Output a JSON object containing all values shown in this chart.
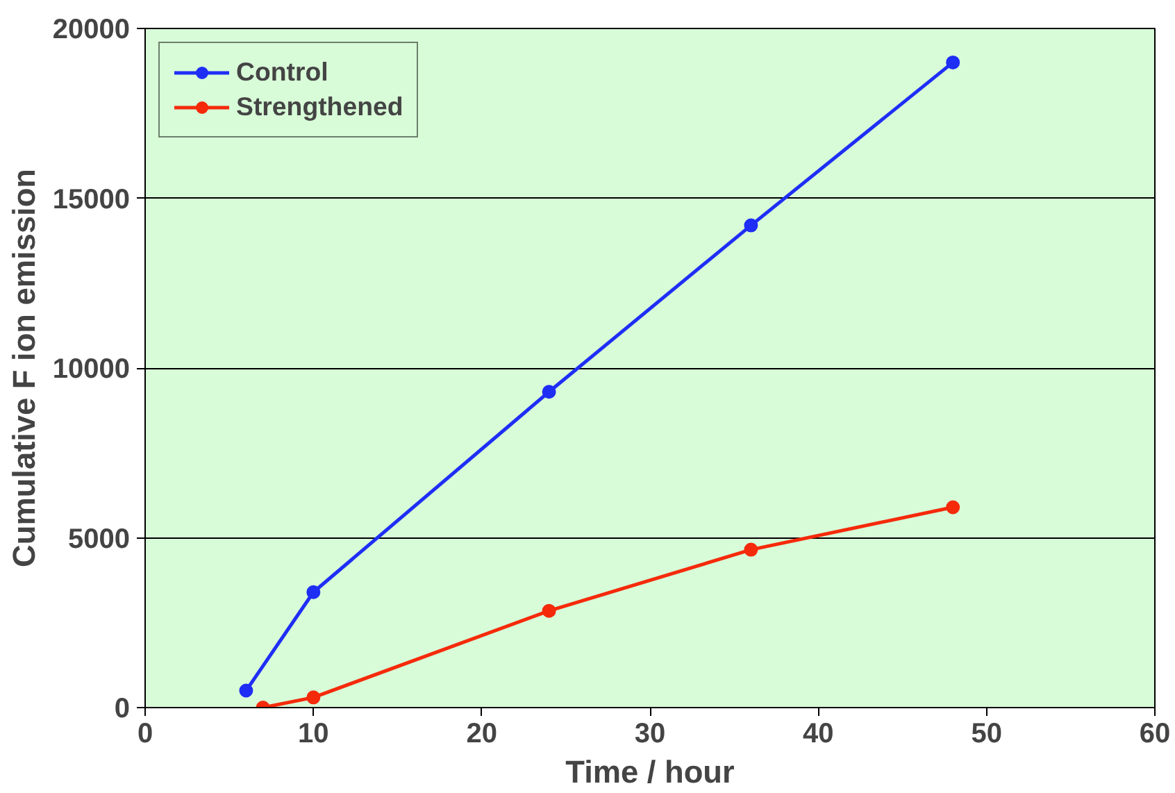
{
  "chart_data": {
    "type": "line",
    "xlabel": "Time / hour",
    "ylabel": "Cumulative F ion emission",
    "xlim": [
      0,
      60
    ],
    "xticks": [
      0,
      10,
      20,
      30,
      40,
      50,
      60
    ],
    "ylim": [
      0,
      20000
    ],
    "yticks": [
      0,
      5000,
      10000,
      15000,
      20000
    ],
    "grid": "y",
    "legend": "top left",
    "marker": "circle",
    "line_style": "solid",
    "series": [
      {
        "name": "Control",
        "color": "#1f2ef5",
        "x": [
          6,
          10,
          24,
          36,
          48
        ],
        "values": [
          500,
          3400,
          9300,
          14200,
          19000
        ]
      },
      {
        "name": "Strengthened",
        "color": "#f52a0a",
        "x": [
          7,
          10,
          24,
          36,
          48
        ],
        "values": [
          0,
          300,
          2850,
          4650,
          5900
        ]
      }
    ]
  }
}
